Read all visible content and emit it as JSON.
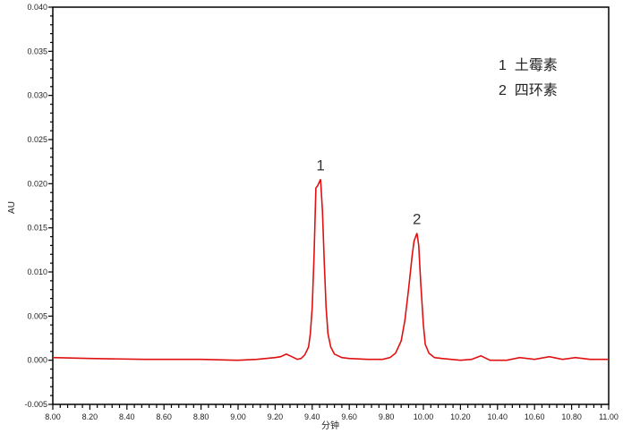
{
  "chart_data": {
    "type": "line",
    "xlabel": "分钟",
    "ylabel": "AU",
    "xlim": [
      8.0,
      11.0
    ],
    "ylim": [
      -0.005,
      0.04
    ],
    "x_ticks": [
      "8.00",
      "8.20",
      "8.40",
      "8.60",
      "8.80",
      "9.00",
      "9.20",
      "9.40",
      "9.60",
      "9.80",
      "10.00",
      "10.20",
      "10.40",
      "10.60",
      "10.80",
      "11.00"
    ],
    "y_ticks": [
      "-0.005",
      "0.000",
      "0.005",
      "0.010",
      "0.015",
      "0.020",
      "0.025",
      "0.030",
      "0.035",
      "0.040"
    ],
    "grid": false,
    "line_color": "#e01010",
    "legend": {
      "placement": "top-right",
      "entries": [
        "1  土霉素",
        "2  四环素"
      ]
    },
    "peak_labels": [
      {
        "label": "1",
        "x": 9.445,
        "y": 0.0205
      },
      {
        "label": "2",
        "x": 9.965,
        "y": 0.0144
      }
    ],
    "series": [
      {
        "x": [
          8.0,
          8.2,
          8.5,
          8.8,
          9.0,
          9.1,
          9.15,
          9.2,
          9.23,
          9.26,
          9.29,
          9.32,
          9.34,
          9.36,
          9.38,
          9.39,
          9.4,
          9.41,
          9.42,
          9.43,
          9.445,
          9.455,
          9.465,
          9.475,
          9.485,
          9.5,
          9.52,
          9.56,
          9.6,
          9.7,
          9.78,
          9.82,
          9.85,
          9.88,
          9.9,
          9.92,
          9.94,
          9.95,
          9.965,
          9.975,
          9.985,
          10.0,
          10.01,
          10.03,
          10.06,
          10.1,
          10.2,
          10.26,
          10.31,
          10.36,
          10.45,
          10.52,
          10.6,
          10.68,
          10.75,
          10.82,
          10.9,
          11.0
        ],
        "y": [
          0.0003,
          0.0002,
          0.0001,
          0.0001,
          0.0,
          0.0001,
          0.0002,
          0.0003,
          0.0004,
          0.0007,
          0.0004,
          0.0001,
          0.0002,
          0.0006,
          0.0015,
          0.003,
          0.006,
          0.012,
          0.0195,
          0.0198,
          0.0205,
          0.017,
          0.011,
          0.006,
          0.003,
          0.0015,
          0.0007,
          0.0003,
          0.0002,
          0.0001,
          0.0001,
          0.0003,
          0.0008,
          0.0022,
          0.0045,
          0.008,
          0.012,
          0.0135,
          0.0144,
          0.013,
          0.009,
          0.004,
          0.0018,
          0.0008,
          0.0003,
          0.0002,
          0.0,
          0.0001,
          0.0005,
          0.0,
          0.0,
          0.0003,
          0.0001,
          0.0004,
          0.0001,
          0.0003,
          0.0001,
          0.0001
        ]
      }
    ]
  }
}
